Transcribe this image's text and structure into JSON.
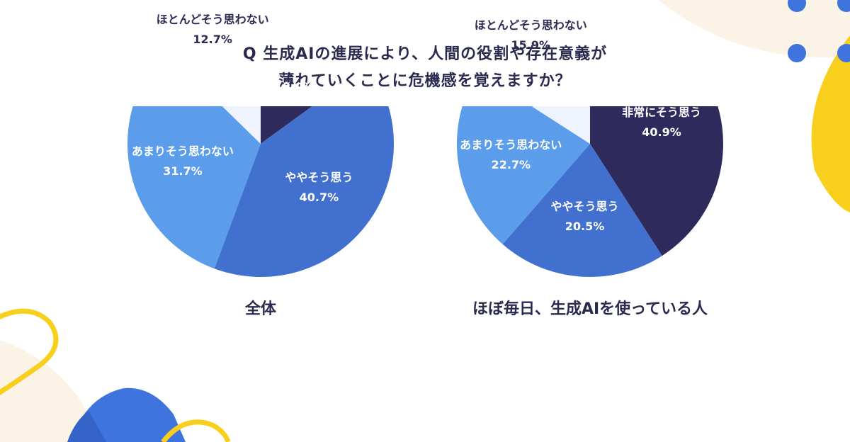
{
  "title": {
    "line1": "Q 生成AIの進展により、人間の役割や存在意義が",
    "line2": "薄れていくことに危機感を覚えますか？"
  },
  "colors": {
    "very": "#2e2b5c",
    "somewhat": "#4270cf",
    "not_much": "#5b9ceb",
    "not_at_all": "#eef3fd",
    "label_light": "#ffffff",
    "label_dark": "#2b2b52"
  },
  "chart_data": [
    {
      "type": "pie",
      "title": "全体",
      "slices": [
        {
          "label": "非常にそう思う",
          "value": 15.0,
          "display": "15.0%",
          "color": "#2e2b5c"
        },
        {
          "label": "ややそう思う",
          "value": 40.7,
          "display": "40.7%",
          "color": "#4270cf"
        },
        {
          "label": "あまりそう思わない",
          "value": 31.7,
          "display": "31.7%",
          "color": "#5b9ceb"
        },
        {
          "label": "ほとんどそう思わない",
          "value": 12.7,
          "display": "12.7%",
          "color": "#eef3fd"
        }
      ]
    },
    {
      "type": "pie",
      "title": "ほぼ毎日、生成AIを使っている人",
      "slices": [
        {
          "label": "非常にそう思う",
          "value": 40.9,
          "display": "40.9%",
          "color": "#2e2b5c"
        },
        {
          "label": "ややそう思う",
          "value": 20.5,
          "display": "20.5%",
          "color": "#4270cf"
        },
        {
          "label": "あまりそう思わない",
          "value": 22.7,
          "display": "22.7%",
          "color": "#5b9ceb"
        },
        {
          "label": "ほとんどそう思わない",
          "value": 15.9,
          "display": "15.9%",
          "color": "#eef3fd"
        }
      ]
    }
  ]
}
